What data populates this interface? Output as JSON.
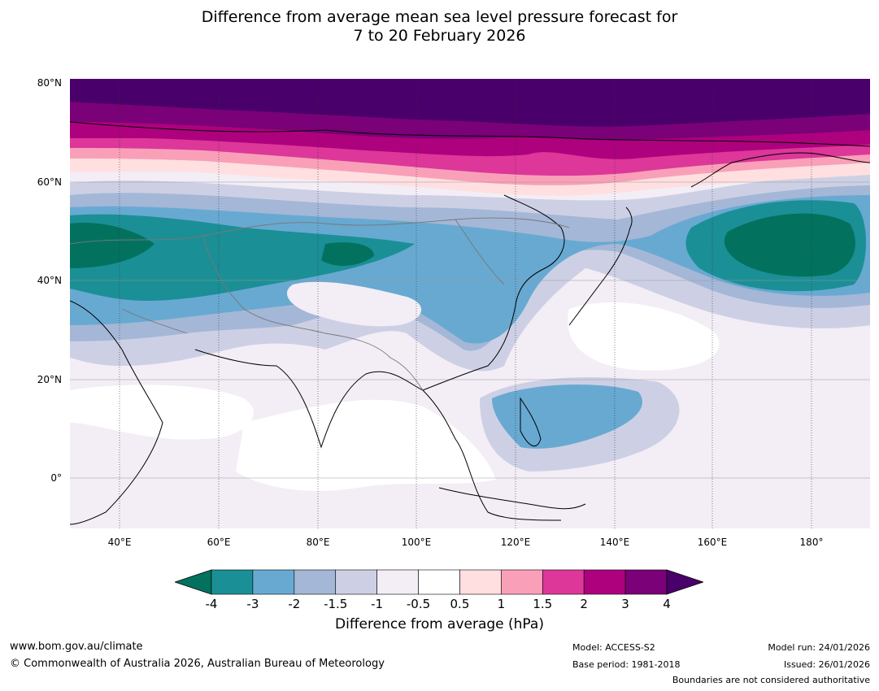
{
  "title": {
    "line1": "Difference from average mean sea level pressure forecast for",
    "line2": "7 to 20 February 2026"
  },
  "map": {
    "lat_labels": [
      "80°N",
      "60°N",
      "40°N",
      "20°N",
      "0°"
    ],
    "lon_labels": [
      "40°E",
      "60°E",
      "80°E",
      "100°E",
      "120°E",
      "140°E",
      "160°E",
      "180°"
    ]
  },
  "colorbar": {
    "ticks": [
      "-4",
      "-3",
      "-2",
      "-1.5",
      "-1",
      "-0.5",
      "0.5",
      "1",
      "1.5",
      "2",
      "3",
      "4"
    ],
    "colors": [
      "#1b8f96",
      "#68a9d1",
      "#a4b7d7",
      "#cdd0e4",
      "#f3edf6",
      "#ffffff",
      "#ffdfe0",
      "#f9a0b8",
      "#dc3799",
      "#ae017e",
      "#7a0177",
      "#49006a"
    ],
    "low_color": "#02725f",
    "high_color": "#49006a",
    "label": "Difference from average (hPa)"
  },
  "footer": {
    "website": "www.bom.gov.au/climate",
    "copyright": "© Commonwealth of Australia 2026, Australian Bureau of Meteorology",
    "model": "Model: ACCESS-S2",
    "base_period": "Base period: 1981-2018",
    "model_run": "Model run: 24/01/2026",
    "issued": "Issued: 26/01/2026",
    "boundaries": "Boundaries are not considered authoritative"
  }
}
